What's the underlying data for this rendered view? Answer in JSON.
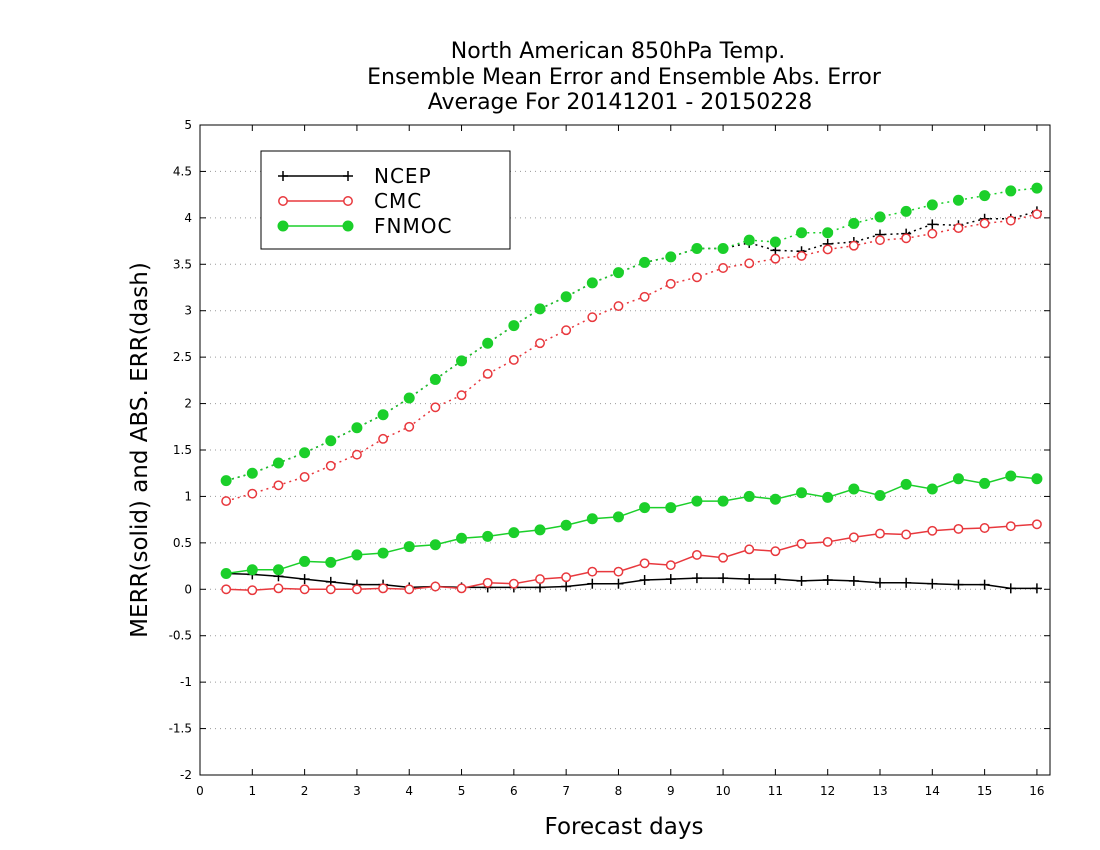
{
  "chart_data": {
    "type": "line",
    "title": [
      "North American 850hPa Temp.",
      "Ensemble Mean Error and Ensemble Abs. Error",
      "Average For 20141201 - 20150228"
    ],
    "xlabel": "Forecast days",
    "ylabel": "MERR(solid) and ABS. ERR(dash)",
    "xlim": [
      0,
      16.25
    ],
    "ylim": [
      -2,
      5
    ],
    "xticks": [
      0,
      1,
      2,
      3,
      4,
      5,
      6,
      7,
      8,
      9,
      10,
      11,
      12,
      13,
      14,
      15,
      16
    ],
    "yticks": [
      -2,
      -1.5,
      -1,
      -0.5,
      0,
      0.5,
      1,
      1.5,
      2,
      2.5,
      3,
      3.5,
      4,
      4.5,
      5
    ],
    "ytick_labels": [
      "-2",
      "-1.5",
      "-1",
      "-0.5",
      "0",
      "0.5",
      "1",
      "1.5",
      "2",
      "2.5",
      "3",
      "3.5",
      "4",
      "4.5",
      "5"
    ],
    "grid": "horizontal dotted",
    "legend_position": "top-left",
    "x": [
      0.5,
      1,
      1.5,
      2,
      2.5,
      3,
      3.5,
      4,
      4.5,
      5,
      5.5,
      6,
      6.5,
      7,
      7.5,
      8,
      8.5,
      9,
      9.5,
      10,
      10.5,
      11,
      11.5,
      12,
      12.5,
      13,
      13.5,
      14,
      14.5,
      15,
      15.5,
      16
    ],
    "series": [
      {
        "name": "NCEP",
        "color": "#000000",
        "marker": "plus",
        "merr": [
          0.17,
          0.16,
          0.14,
          0.11,
          0.08,
          0.05,
          0.05,
          0.02,
          0.03,
          0.02,
          0.02,
          0.02,
          0.02,
          0.03,
          0.06,
          0.06,
          0.1,
          0.11,
          0.12,
          0.12,
          0.11,
          0.11,
          0.09,
          0.1,
          0.09,
          0.07,
          0.07,
          0.06,
          0.05,
          0.05,
          0.01,
          0.01
        ],
        "abs_err": [
          1.17,
          1.25,
          1.36,
          1.47,
          1.6,
          1.74,
          1.88,
          2.06,
          2.26,
          2.46,
          2.65,
          2.84,
          3.02,
          3.15,
          3.3,
          3.41,
          3.52,
          3.58,
          3.67,
          3.67,
          3.73,
          3.65,
          3.64,
          3.72,
          3.74,
          3.82,
          3.83,
          3.93,
          3.92,
          3.99,
          3.99,
          4.07
        ]
      },
      {
        "name": "CMC",
        "color": "#e8383d",
        "marker": "open-circle",
        "merr": [
          0.0,
          -0.01,
          0.01,
          0.0,
          0.0,
          0.0,
          0.01,
          0.0,
          0.03,
          0.01,
          0.07,
          0.06,
          0.11,
          0.13,
          0.19,
          0.19,
          0.28,
          0.26,
          0.37,
          0.34,
          0.43,
          0.41,
          0.49,
          0.51,
          0.56,
          0.6,
          0.59,
          0.63,
          0.65,
          0.66,
          0.68,
          0.7
        ],
        "abs_err": [
          0.95,
          1.03,
          1.12,
          1.21,
          1.33,
          1.45,
          1.62,
          1.75,
          1.96,
          2.09,
          2.32,
          2.47,
          2.65,
          2.79,
          2.93,
          3.05,
          3.15,
          3.29,
          3.36,
          3.46,
          3.51,
          3.56,
          3.59,
          3.66,
          3.7,
          3.76,
          3.78,
          3.83,
          3.89,
          3.94,
          3.97,
          4.04
        ]
      },
      {
        "name": "FNMOC",
        "color": "#1bcf2a",
        "marker": "filled-circle",
        "merr": [
          0.17,
          0.21,
          0.21,
          0.3,
          0.29,
          0.37,
          0.39,
          0.46,
          0.48,
          0.55,
          0.57,
          0.61,
          0.64,
          0.69,
          0.76,
          0.78,
          0.88,
          0.88,
          0.95,
          0.95,
          1.0,
          0.97,
          1.04,
          0.99,
          1.08,
          1.01,
          1.13,
          1.08,
          1.19,
          1.14,
          1.22,
          1.19
        ],
        "abs_err": [
          1.17,
          1.25,
          1.36,
          1.47,
          1.6,
          1.74,
          1.88,
          2.06,
          2.26,
          2.46,
          2.65,
          2.84,
          3.02,
          3.15,
          3.3,
          3.41,
          3.52,
          3.58,
          3.67,
          3.67,
          3.76,
          3.74,
          3.84,
          3.84,
          3.94,
          4.01,
          4.07,
          4.14,
          4.19,
          4.24,
          4.29,
          4.32
        ]
      }
    ]
  }
}
